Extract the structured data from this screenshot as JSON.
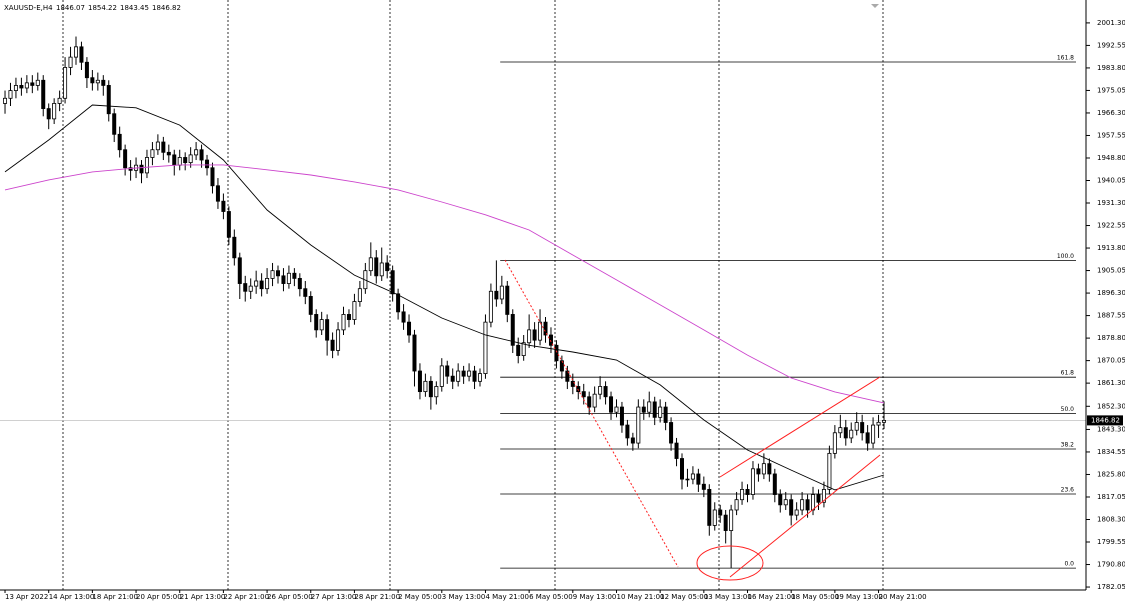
{
  "chart_data": {
    "type": "candlestick",
    "header": {
      "symbol": "XAUUSD-E,H4"
    },
    "up_color": "#ffffff",
    "down_color": "#000000",
    "xlim": [
      -0.92,
      198
    ],
    "ylim": [
      1780.9,
      2010.2
    ],
    "xticks": [
      {
        "value": 0,
        "label": "13 Apr 2022"
      },
      {
        "value": 8,
        "label": "14 Apr 13:00"
      },
      {
        "value": 16,
        "label": "18 Apr 21:00"
      },
      {
        "value": 24,
        "label": "20 Apr 05:00"
      },
      {
        "value": 32,
        "label": "21 Apr 13:00"
      },
      {
        "value": 40,
        "label": "22 Apr 21:00"
      },
      {
        "value": 48,
        "label": "26 Apr 05:00"
      },
      {
        "value": 56,
        "label": "27 Apr 13:00"
      },
      {
        "value": 64,
        "label": "28 Apr 21:00"
      },
      {
        "value": 72,
        "label": "2 May 05:00"
      },
      {
        "value": 80,
        "label": "3 May 13:00"
      },
      {
        "value": 88,
        "label": "4 May 21:00"
      },
      {
        "value": 96,
        "label": "6 May 05:00"
      },
      {
        "value": 104,
        "label": "9 May 13:00"
      },
      {
        "value": 112,
        "label": "10 May 21:00"
      },
      {
        "value": 120,
        "label": "12 May 05:00"
      },
      {
        "value": 128,
        "label": "13 May 13:00"
      },
      {
        "value": 136,
        "label": "16 May 21:00"
      },
      {
        "value": 144,
        "label": "18 May 05:00"
      },
      {
        "value": 152,
        "label": "19 May 13:00"
      },
      {
        "value": 160,
        "label": "20 May 21:00"
      }
    ],
    "yticks": [
      {
        "value": 2001.3,
        "label": "2001.30"
      },
      {
        "value": 1992.55,
        "label": "1992.55"
      },
      {
        "value": 1983.8,
        "label": "1983.80"
      },
      {
        "value": 1975.05,
        "label": "1975.05"
      },
      {
        "value": 1966.3,
        "label": "1966.30"
      },
      {
        "value": 1957.55,
        "label": "1957.55"
      },
      {
        "value": 1948.8,
        "label": "1948.80"
      },
      {
        "value": 1940.05,
        "label": "1940.05"
      },
      {
        "value": 1931.3,
        "label": "1931.30"
      },
      {
        "value": 1922.55,
        "label": "1922.55"
      },
      {
        "value": 1913.8,
        "label": "1913.80"
      },
      {
        "value": 1905.05,
        "label": "1905.05"
      },
      {
        "value": 1896.3,
        "label": "1896.30"
      },
      {
        "value": 1887.55,
        "label": "1887.55"
      },
      {
        "value": 1878.8,
        "label": "1878.80"
      },
      {
        "value": 1870.05,
        "label": "1870.05"
      },
      {
        "value": 1861.3,
        "label": "1861.30"
      },
      {
        "value": 1852.3,
        "label": "1852.30"
      },
      {
        "value": 1843.3,
        "label": "1843.30"
      },
      {
        "value": 1834.55,
        "label": "1834.55"
      },
      {
        "value": 1825.8,
        "label": "1825.80"
      },
      {
        "value": 1817.05,
        "label": "1817.05"
      },
      {
        "value": 1808.3,
        "label": "1808.30"
      },
      {
        "value": 1799.55,
        "label": "1799.55"
      },
      {
        "value": 1790.8,
        "label": "1790.80"
      },
      {
        "value": 1782.05,
        "label": "1782.05"
      }
    ],
    "ohlc": [
      [
        1970,
        1975,
        1966,
        1972
      ],
      [
        1972,
        1978,
        1969,
        1975
      ],
      [
        1975,
        1980,
        1972,
        1977
      ],
      [
        1977,
        1980,
        1973,
        1976
      ],
      [
        1976,
        1981,
        1974,
        1978
      ],
      [
        1978,
        1981,
        1974,
        1977
      ],
      [
        1977,
        1982,
        1975,
        1979
      ],
      [
        1979,
        1981,
        1965,
        1968
      ],
      [
        1968,
        1970,
        1960,
        1964
      ],
      [
        1964,
        1972,
        1962,
        1970
      ],
      [
        1970,
        1975,
        1967,
        1972
      ],
      [
        1972,
        1988,
        1970,
        1984
      ],
      [
        1984,
        1992,
        1981,
        1988
      ],
      [
        1988,
        1996,
        1985,
        1992
      ],
      [
        1992,
        1994,
        1983,
        1986
      ],
      [
        1986,
        1988,
        1976,
        1980
      ],
      [
        1980,
        1983,
        1975,
        1978
      ],
      [
        1978,
        1982,
        1975,
        1979
      ],
      [
        1979,
        1981,
        1973,
        1977
      ],
      [
        1977,
        1979,
        1963,
        1966
      ],
      [
        1966,
        1968,
        1955,
        1958
      ],
      [
        1958,
        1961,
        1949,
        1952
      ],
      [
        1952,
        1954,
        1942,
        1945
      ],
      [
        1945,
        1948,
        1940,
        1944
      ],
      [
        1944,
        1949,
        1941,
        1946
      ],
      [
        1946,
        1948,
        1939,
        1943
      ],
      [
        1943,
        1952,
        1941,
        1949
      ],
      [
        1949,
        1955,
        1946,
        1952
      ],
      [
        1952,
        1958,
        1950,
        1955
      ],
      [
        1955,
        1957,
        1948,
        1951
      ],
      [
        1951,
        1954,
        1947,
        1950
      ],
      [
        1950,
        1952,
        1942,
        1946
      ],
      [
        1946,
        1952,
        1944,
        1949
      ],
      [
        1949,
        1951,
        1944,
        1947
      ],
      [
        1947,
        1953,
        1945,
        1950
      ],
      [
        1950,
        1955,
        1948,
        1952
      ],
      [
        1952,
        1954,
        1945,
        1948
      ],
      [
        1948,
        1950,
        1942,
        1945
      ],
      [
        1945,
        1947,
        1935,
        1938
      ],
      [
        1938,
        1941,
        1929,
        1932
      ],
      [
        1932,
        1935,
        1925,
        1928
      ],
      [
        1928,
        1930,
        1915,
        1918
      ],
      [
        1918,
        1921,
        1907,
        1910
      ],
      [
        1910,
        1912,
        1894,
        1900
      ],
      [
        1900,
        1903,
        1893,
        1897
      ],
      [
        1897,
        1902,
        1894,
        1899
      ],
      [
        1899,
        1905,
        1896,
        1901
      ],
      [
        1901,
        1904,
        1895,
        1898
      ],
      [
        1898,
        1906,
        1896,
        1902
      ],
      [
        1902,
        1908,
        1899,
        1905
      ],
      [
        1905,
        1907,
        1900,
        1903
      ],
      [
        1903,
        1906,
        1897,
        1900
      ],
      [
        1900,
        1907,
        1898,
        1904
      ],
      [
        1904,
        1906,
        1899,
        1902
      ],
      [
        1902,
        1904,
        1895,
        1898
      ],
      [
        1898,
        1901,
        1892,
        1895
      ],
      [
        1895,
        1897,
        1885,
        1888
      ],
      [
        1888,
        1890,
        1879,
        1882
      ],
      [
        1882,
        1889,
        1880,
        1886
      ],
      [
        1886,
        1888,
        1872,
        1878
      ],
      [
        1878,
        1881,
        1871,
        1874
      ],
      [
        1874,
        1885,
        1872,
        1882
      ],
      [
        1882,
        1891,
        1880,
        1888
      ],
      [
        1888,
        1890,
        1883,
        1886
      ],
      [
        1886,
        1896,
        1884,
        1893
      ],
      [
        1893,
        1901,
        1891,
        1898
      ],
      [
        1898,
        1908,
        1896,
        1905
      ],
      [
        1905,
        1916,
        1903,
        1910
      ],
      [
        1910,
        1913,
        1900,
        1903
      ],
      [
        1903,
        1914,
        1901,
        1908
      ],
      [
        1908,
        1911,
        1902,
        1905
      ],
      [
        1905,
        1907,
        1893,
        1896
      ],
      [
        1896,
        1898,
        1886,
        1889
      ],
      [
        1889,
        1892,
        1882,
        1885
      ],
      [
        1885,
        1888,
        1877,
        1880
      ],
      [
        1880,
        1882,
        1860,
        1866
      ],
      [
        1866,
        1869,
        1855,
        1858
      ],
      [
        1858,
        1865,
        1856,
        1862
      ],
      [
        1862,
        1864,
        1851,
        1856
      ],
      [
        1856,
        1862,
        1853,
        1860
      ],
      [
        1860,
        1871,
        1858,
        1868
      ],
      [
        1868,
        1870,
        1861,
        1864
      ],
      [
        1864,
        1867,
        1859,
        1862
      ],
      [
        1862,
        1869,
        1860,
        1866
      ],
      [
        1866,
        1868,
        1861,
        1864
      ],
      [
        1864,
        1869,
        1862,
        1866
      ],
      [
        1866,
        1868,
        1859,
        1862
      ],
      [
        1862,
        1867,
        1860,
        1865
      ],
      [
        1865,
        1888,
        1863,
        1885
      ],
      [
        1885,
        1900,
        1883,
        1897
      ],
      [
        1897,
        1909,
        1891,
        1894
      ],
      [
        1894,
        1903,
        1892,
        1899
      ],
      [
        1899,
        1901,
        1885,
        1888
      ],
      [
        1888,
        1890,
        1873,
        1876
      ],
      [
        1876,
        1879,
        1869,
        1872
      ],
      [
        1872,
        1880,
        1870,
        1877
      ],
      [
        1877,
        1888,
        1875,
        1882
      ],
      [
        1882,
        1885,
        1875,
        1878
      ],
      [
        1878,
        1890,
        1876,
        1885
      ],
      [
        1885,
        1887,
        1877,
        1880
      ],
      [
        1880,
        1883,
        1873,
        1876
      ],
      [
        1876,
        1878,
        1867,
        1870
      ],
      [
        1870,
        1872,
        1863,
        1866
      ],
      [
        1866,
        1868,
        1859,
        1862
      ],
      [
        1862,
        1865,
        1857,
        1860
      ],
      [
        1860,
        1862,
        1855,
        1858
      ],
      [
        1858,
        1861,
        1853,
        1856
      ],
      [
        1856,
        1858,
        1849,
        1852
      ],
      [
        1852,
        1860,
        1850,
        1857
      ],
      [
        1857,
        1864,
        1855,
        1860
      ],
      [
        1860,
        1862,
        1853,
        1856
      ],
      [
        1856,
        1858,
        1847,
        1850
      ],
      [
        1850,
        1855,
        1848,
        1852
      ],
      [
        1852,
        1854,
        1842,
        1845
      ],
      [
        1845,
        1847,
        1837,
        1840
      ],
      [
        1840,
        1842,
        1835,
        1838
      ],
      [
        1838,
        1855,
        1836,
        1852
      ],
      [
        1852,
        1855,
        1847,
        1850
      ],
      [
        1850,
        1858,
        1848,
        1854
      ],
      [
        1854,
        1856,
        1845,
        1848
      ],
      [
        1848,
        1855,
        1846,
        1852
      ],
      [
        1852,
        1854,
        1843,
        1846
      ],
      [
        1846,
        1848,
        1835,
        1838
      ],
      [
        1838,
        1840,
        1829,
        1832
      ],
      [
        1832,
        1834,
        1820,
        1824
      ],
      [
        1824,
        1828,
        1821,
        1824
      ],
      [
        1824,
        1829,
        1822,
        1826
      ],
      [
        1826,
        1828,
        1819,
        1822
      ],
      [
        1822,
        1825,
        1817,
        1820
      ],
      [
        1820,
        1822,
        1802,
        1806
      ],
      [
        1806,
        1815,
        1804,
        1812
      ],
      [
        1812,
        1814,
        1807,
        1810
      ],
      [
        1810,
        1812,
        1799,
        1804
      ],
      [
        1804,
        1814,
        1789.4,
        1812
      ],
      [
        1812,
        1819,
        1810,
        1816
      ],
      [
        1816,
        1823,
        1814,
        1820
      ],
      [
        1820,
        1822,
        1815,
        1818
      ],
      [
        1818,
        1831,
        1816,
        1828
      ],
      [
        1828,
        1830,
        1823,
        1826
      ],
      [
        1826,
        1834,
        1824,
        1830
      ],
      [
        1830,
        1832,
        1823,
        1826
      ],
      [
        1826,
        1828,
        1815,
        1818
      ],
      [
        1818,
        1820,
        1811,
        1814
      ],
      [
        1814,
        1819,
        1812,
        1816
      ],
      [
        1816,
        1818,
        1806,
        1810
      ],
      [
        1810,
        1815,
        1808,
        1812
      ],
      [
        1812,
        1819,
        1810,
        1816
      ],
      [
        1816,
        1818,
        1809,
        1812
      ],
      [
        1812,
        1821,
        1810,
        1818
      ],
      [
        1818,
        1820,
        1812,
        1815
      ],
      [
        1815,
        1823,
        1813,
        1820
      ],
      [
        1820,
        1837,
        1818,
        1834
      ],
      [
        1834,
        1845,
        1832,
        1842
      ],
      [
        1842,
        1849,
        1840,
        1844
      ],
      [
        1844,
        1847,
        1837,
        1840
      ],
      [
        1840,
        1846,
        1838,
        1843
      ],
      [
        1843,
        1850,
        1841,
        1846
      ],
      [
        1846,
        1849,
        1839,
        1842
      ],
      [
        1842,
        1845,
        1835,
        1838
      ],
      [
        1838,
        1848,
        1836,
        1845
      ],
      [
        1845,
        1849,
        1840,
        1846.07
      ],
      [
        1846.07,
        1854.22,
        1843.45,
        1846.82
      ]
    ],
    "series": [
      {
        "color": "#000000",
        "x": [
          0,
          8,
          16,
          24,
          32,
          40,
          48,
          56,
          64,
          72,
          80,
          88,
          96,
          104,
          112,
          120,
          128,
          136,
          144,
          152,
          161
        ],
        "values": [
          1943.4,
          1955.8,
          1969.4,
          1968.3,
          1961.6,
          1948,
          1928.6,
          1915,
          1903.3,
          1895.6,
          1886.6,
          1880,
          1876,
          1873.4,
          1870.3,
          1860.6,
          1847,
          1835.3,
          1827.5,
          1819.8,
          1825.6
        ]
      },
      {
        "color": "#cc44cc",
        "x": [
          0,
          8,
          16,
          24,
          32,
          40,
          48,
          56,
          64,
          72,
          80,
          88,
          96,
          104,
          112,
          120,
          128,
          136,
          144,
          152,
          161
        ],
        "values": [
          1936.4,
          1940.3,
          1943.4,
          1944.9,
          1946.1,
          1946.1,
          1944.2,
          1942.2,
          1939.5,
          1936.4,
          1931.7,
          1926.7,
          1920.8,
          1911.1,
          1901.4,
          1891.7,
          1882,
          1872.2,
          1863.3,
          1857.9,
          1853.6
        ]
      }
    ],
    "fib_start": 90.7,
    "fib_levels": [
      {
        "label": "161.8",
        "price": 1986.1
      },
      {
        "label": "100.0",
        "price": 1909
      },
      {
        "label": "61.8",
        "price": 1863.6
      },
      {
        "label": "50.0",
        "price": 1849.5
      },
      {
        "label": "38.2",
        "price": 1835.7
      },
      {
        "label": "23.6",
        "price": 1818.2
      },
      {
        "label": "0.0",
        "price": 1789.4
      }
    ]
  }
}
